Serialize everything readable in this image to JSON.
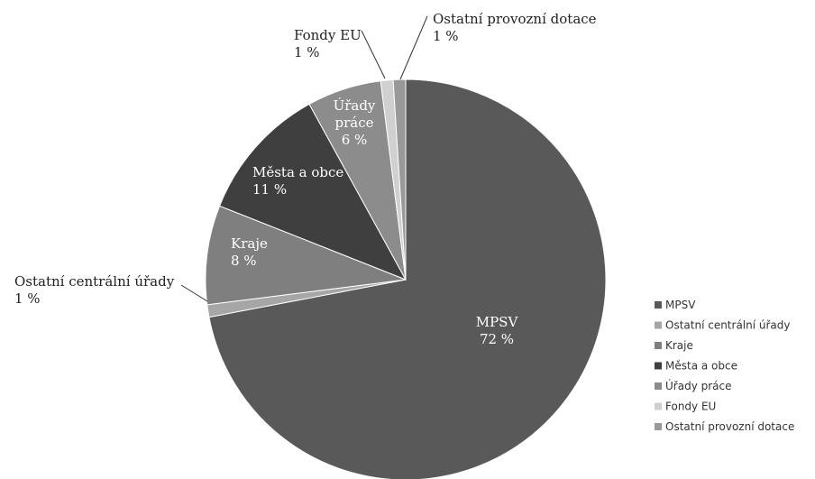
{
  "chart_data": {
    "type": "pie",
    "title": "",
    "legend_position": "right-bottom",
    "slices": [
      {
        "name": "MPSV",
        "value": 72,
        "value_label": "72 %",
        "color": "#595959",
        "label_color": "#ffffff",
        "label_lines": [
          "MPSV"
        ],
        "outside": false
      },
      {
        "name": "Ostatní centrální úřady",
        "value": 1,
        "value_label": "1 %",
        "color": "#a6a6a6",
        "label_color": "#222222",
        "label_lines": [
          "Ostatní centrální úřady"
        ],
        "outside": true
      },
      {
        "name": "Kraje",
        "value": 8,
        "value_label": "8 %",
        "color": "#7f7f7f",
        "label_color": "#ffffff",
        "label_lines": [
          "Kraje"
        ],
        "outside": false
      },
      {
        "name": "Města a obce",
        "value": 11,
        "value_label": "11 %",
        "color": "#3f3f3f",
        "label_color": "#ffffff",
        "label_lines": [
          "Města a obce"
        ],
        "outside": false
      },
      {
        "name": "Úřady práce",
        "value": 6,
        "value_label": "6 %",
        "color": "#8c8c8c",
        "label_color": "#ffffff",
        "label_lines": [
          "Úřady",
          "práce"
        ],
        "outside": false
      },
      {
        "name": "Fondy EU",
        "value": 1,
        "value_label": "1 %",
        "color": "#d0d0d0",
        "label_color": "#222222",
        "label_lines": [
          "Fondy EU"
        ],
        "outside": true
      },
      {
        "name": "Ostatní provozní dotace",
        "value": 1,
        "value_label": "1 %",
        "color": "#999999",
        "label_color": "#222222",
        "label_lines": [
          "Ostatní provozní dotace"
        ],
        "outside": true
      }
    ]
  }
}
